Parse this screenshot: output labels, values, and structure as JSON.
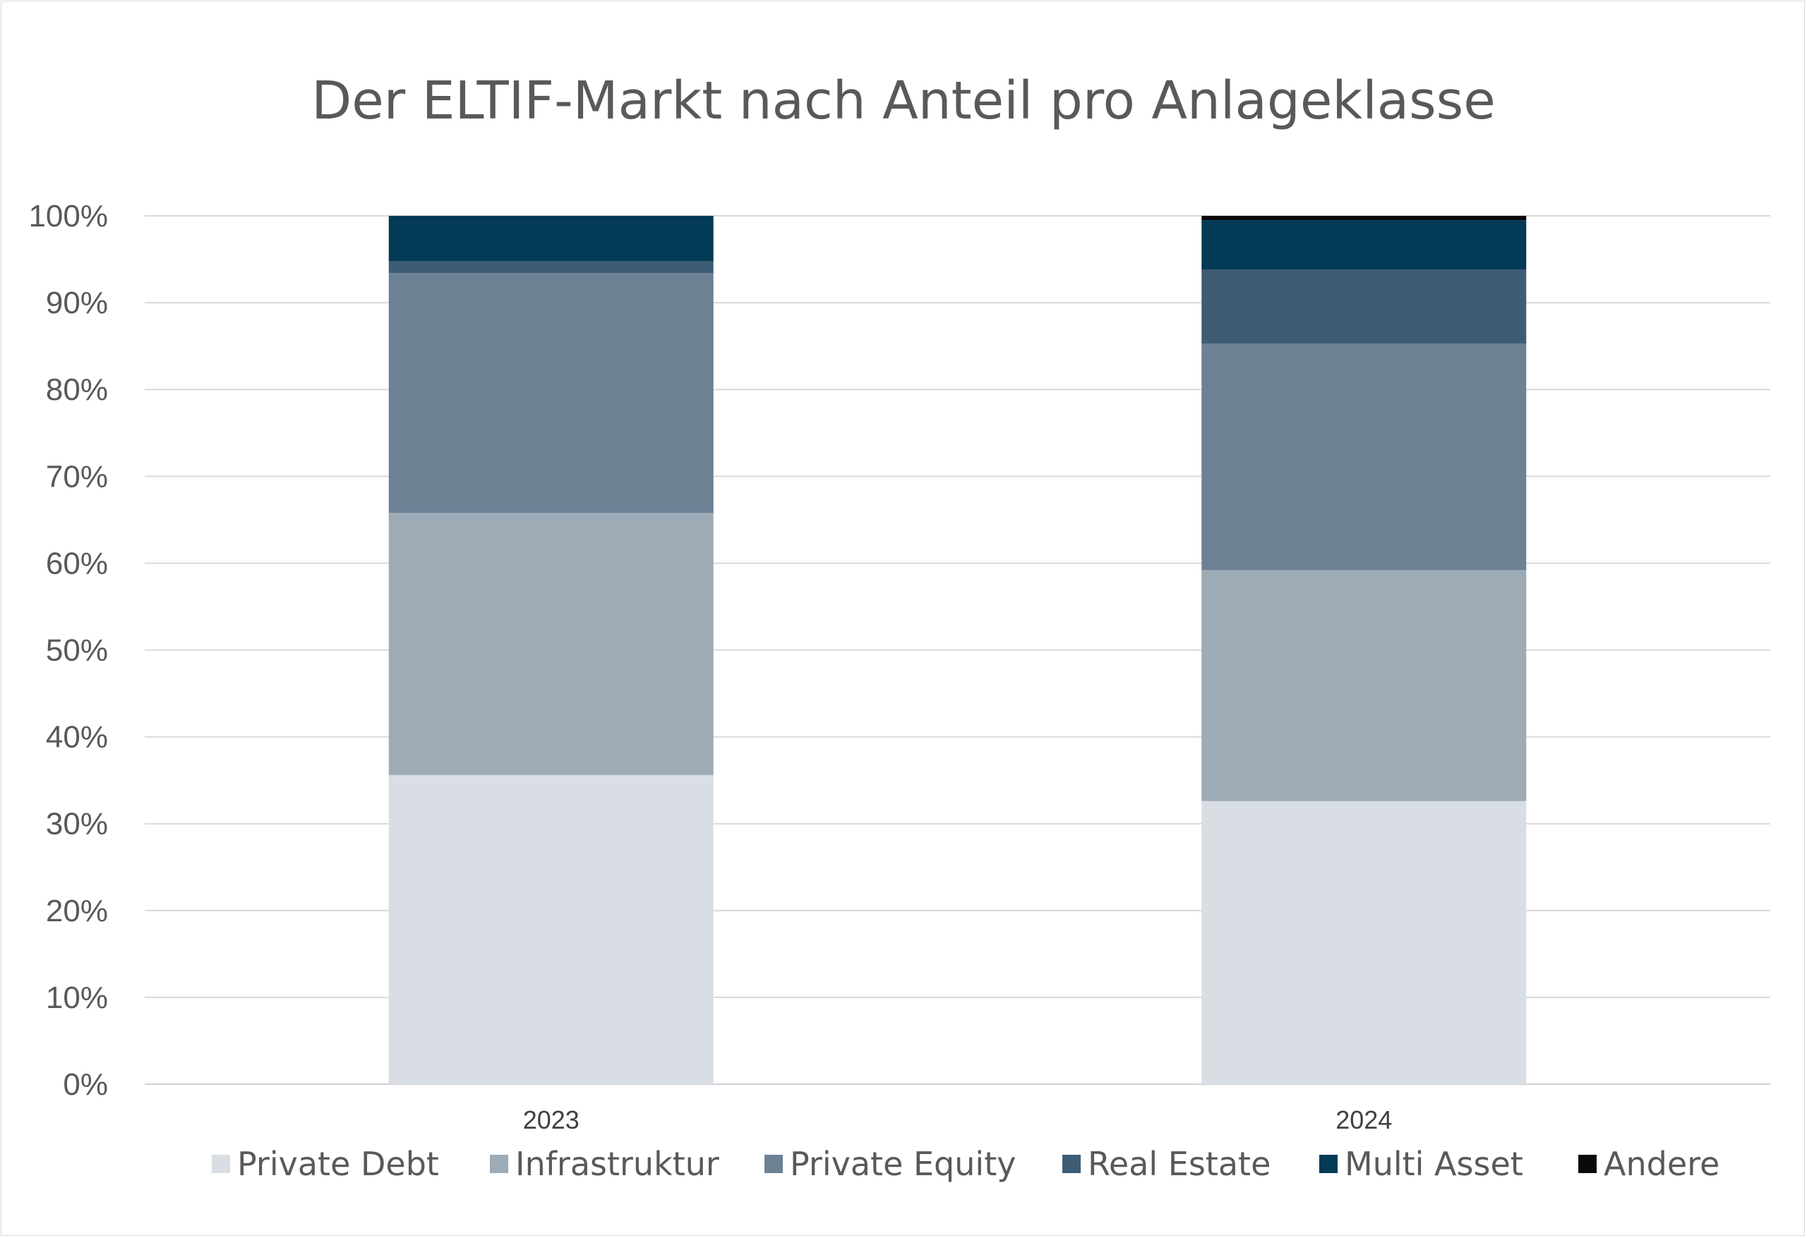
{
  "chart_data": {
    "type": "bar",
    "stacked": true,
    "title": "Der ELTIF-Markt nach Anteil pro Anlageklasse",
    "categories": [
      "2023",
      "2024"
    ],
    "y_ticks": [
      "0%",
      "10%",
      "20%",
      "30%",
      "40%",
      "50%",
      "60%",
      "70%",
      "80%",
      "90%",
      "100%"
    ],
    "ylim": [
      0,
      100
    ],
    "grid": true,
    "legend_position": "bottom",
    "series": [
      {
        "name": "Private Debt",
        "color": "#d9dee4",
        "values": [
          35.6,
          32.6
        ]
      },
      {
        "name": "Infrastruktur",
        "color": "#9dabb7",
        "values": [
          30.2,
          26.6
        ]
      },
      {
        "name": "Private Equity",
        "color": "#6d8195",
        "values": [
          27.6,
          26.1
        ]
      },
      {
        "name": "Real Estate",
        "color": "#3e5d75",
        "values": [
          1.4,
          8.5
        ]
      },
      {
        "name": "Multi Asset",
        "color": "#033a55",
        "values": [
          5.2,
          5.7
        ]
      },
      {
        "name": "Andere",
        "color": "#0a0a0a",
        "values": [
          0.0,
          0.5
        ]
      }
    ]
  }
}
